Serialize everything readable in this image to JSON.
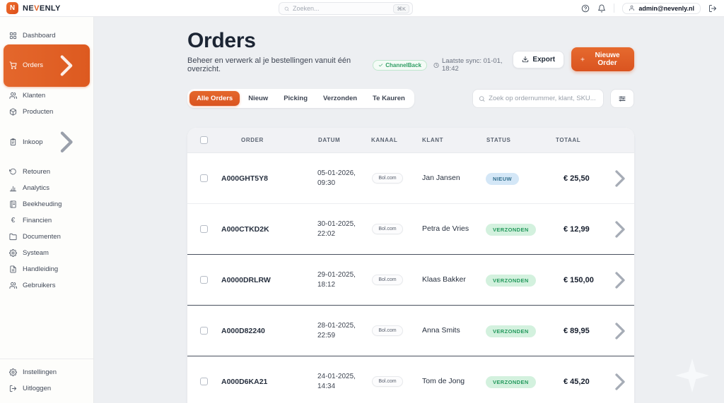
{
  "colors": {
    "accent": "#e15e22",
    "status_new_bg": "#d4e7f7",
    "status_new_text": "#33708f",
    "status_shipped_bg": "#d3f1de",
    "status_shipped_text": "#23995c"
  },
  "brand": {
    "logo_letter": "N",
    "name_pre": "NE",
    "name_accent": "V",
    "name_post": "ENLY"
  },
  "topbar": {
    "search_placeholder": "Zoeken...",
    "search_shortcut": "⌘K",
    "user_email": "admin@nevenly.nl"
  },
  "sidebar": {
    "items": [
      {
        "label": "Dashboard",
        "icon": "grid"
      },
      {
        "label": "Orders",
        "icon": "cart",
        "active": true,
        "chevron": true
      },
      {
        "label": "Klanten",
        "icon": "users"
      },
      {
        "label": "Producten",
        "icon": "box"
      },
      {
        "label": "Inkoop",
        "icon": "clipboard",
        "chevron": true
      },
      {
        "label": "Retouren",
        "icon": "rotate"
      },
      {
        "label": "Analytics",
        "icon": "chart"
      },
      {
        "label": "Beekheuding",
        "icon": "book"
      },
      {
        "label": "Financien",
        "icon": "euro"
      },
      {
        "label": "Documenten",
        "icon": "folder"
      },
      {
        "label": "Systeam",
        "icon": "gear"
      },
      {
        "label": "Handleiding",
        "icon": "file"
      },
      {
        "label": "Gebruikers",
        "icon": "users"
      }
    ],
    "footer_items": [
      {
        "label": "Instellingen",
        "icon": "gear"
      },
      {
        "label": "Uitloggen",
        "icon": "logout"
      }
    ]
  },
  "page": {
    "title": "Orders",
    "subtitle": "Beheer en verwerk al je bestellingen vanuit één overzicht.",
    "integration_badge": "ChannelBack",
    "last_sync": "Laatste sync: 01-01, 18:42",
    "export_label": "Export",
    "new_order_label": "Nieuwe Order"
  },
  "tabs": [
    {
      "label": "Alle Orders",
      "active": true
    },
    {
      "label": "Nieuw"
    },
    {
      "label": "Picking"
    },
    {
      "label": "Verzonden"
    },
    {
      "label": "Te Kauren"
    }
  ],
  "table": {
    "search_placeholder": "Zoek op ordernummer, klant, SKU...",
    "columns": [
      "ORDER",
      "DATUM",
      "KANAAL",
      "KLANT",
      "STATUS",
      "TOTAAL"
    ],
    "rows": [
      {
        "order": "A000GHT5Y8",
        "datum": "05-01-2026, 09:30",
        "kanaal": "Bol.com",
        "klant": "Jan Jansen",
        "status": "NIEUW",
        "status_type": "new",
        "totaal": "€ 25,50"
      },
      {
        "order": "A000CTKD2K",
        "datum": "30-01-2025, 22:02",
        "kanaal": "Bol.com",
        "klant": "Petra de Vries",
        "status": "VERZONDEN",
        "status_type": "shipped",
        "totaal": "€ 12,99"
      },
      {
        "order": "A0000DRLRW",
        "datum": "29-01-2025, 18:12",
        "kanaal": "Bol.com",
        "klant": "Klaas Bakker",
        "status": "VERZONDEN",
        "status_type": "shipped",
        "totaal": "€ 150,00"
      },
      {
        "order": "A000D82240",
        "datum": "28-01-2025, 22:59",
        "kanaal": "Bol.com",
        "klant": "Anna Smits",
        "status": "VERZONDEN",
        "status_type": "shipped",
        "totaal": "€ 89,95"
      },
      {
        "order": "A000D6KA21",
        "datum": "24-01-2025, 14:34",
        "kanaal": "Bol.com",
        "klant": "Tom de Jong",
        "status": "VERZONDEN",
        "status_type": "shipped",
        "totaal": "€ 45,20"
      }
    ]
  }
}
